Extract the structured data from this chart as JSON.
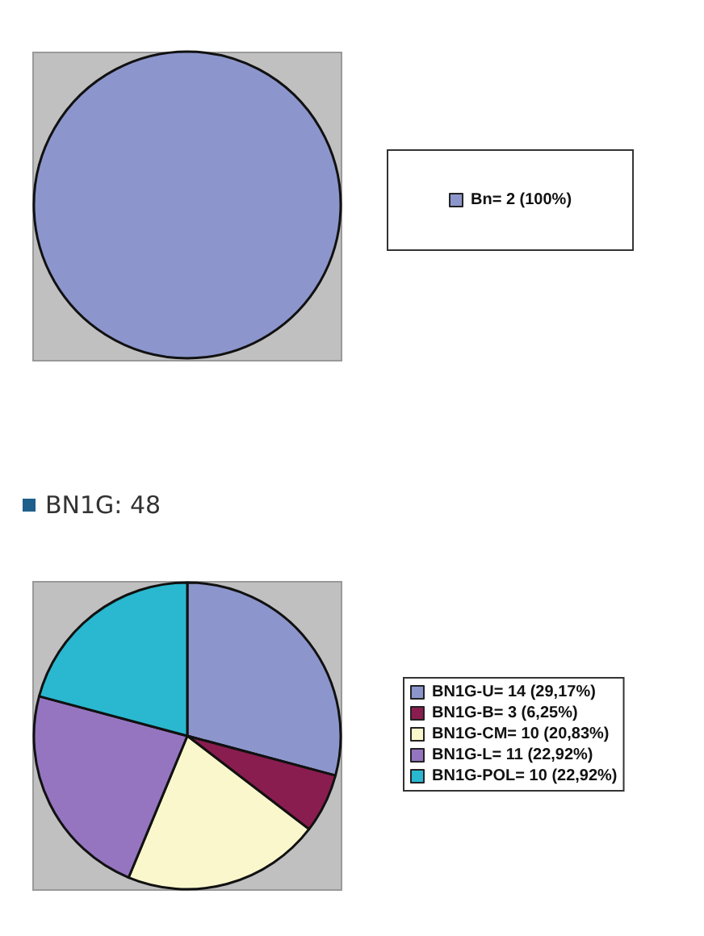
{
  "chart_data": [
    {
      "type": "pie",
      "categories": [
        "Bn= 2 (100%)"
      ],
      "values": [
        2
      ],
      "colors": [
        "#8c96cc"
      ],
      "legend": "right"
    },
    {
      "type": "pie",
      "title": "BN1G: 48",
      "categories": [
        "BN1G-U= 14 (29,17%)",
        "BN1G-B= 3 (6,25%)",
        "BN1G-CM= 10 (20,83%)",
        "BN1G-L= 11 (22,92%)",
        "BN1G-POL= 10 (22,92%)"
      ],
      "values": [
        14,
        3,
        10,
        11,
        10
      ],
      "colors": [
        "#8c96cc",
        "#8a1d4f",
        "#fbf7cc",
        "#9575c0",
        "#2ab8d0"
      ],
      "legend": "right"
    }
  ]
}
